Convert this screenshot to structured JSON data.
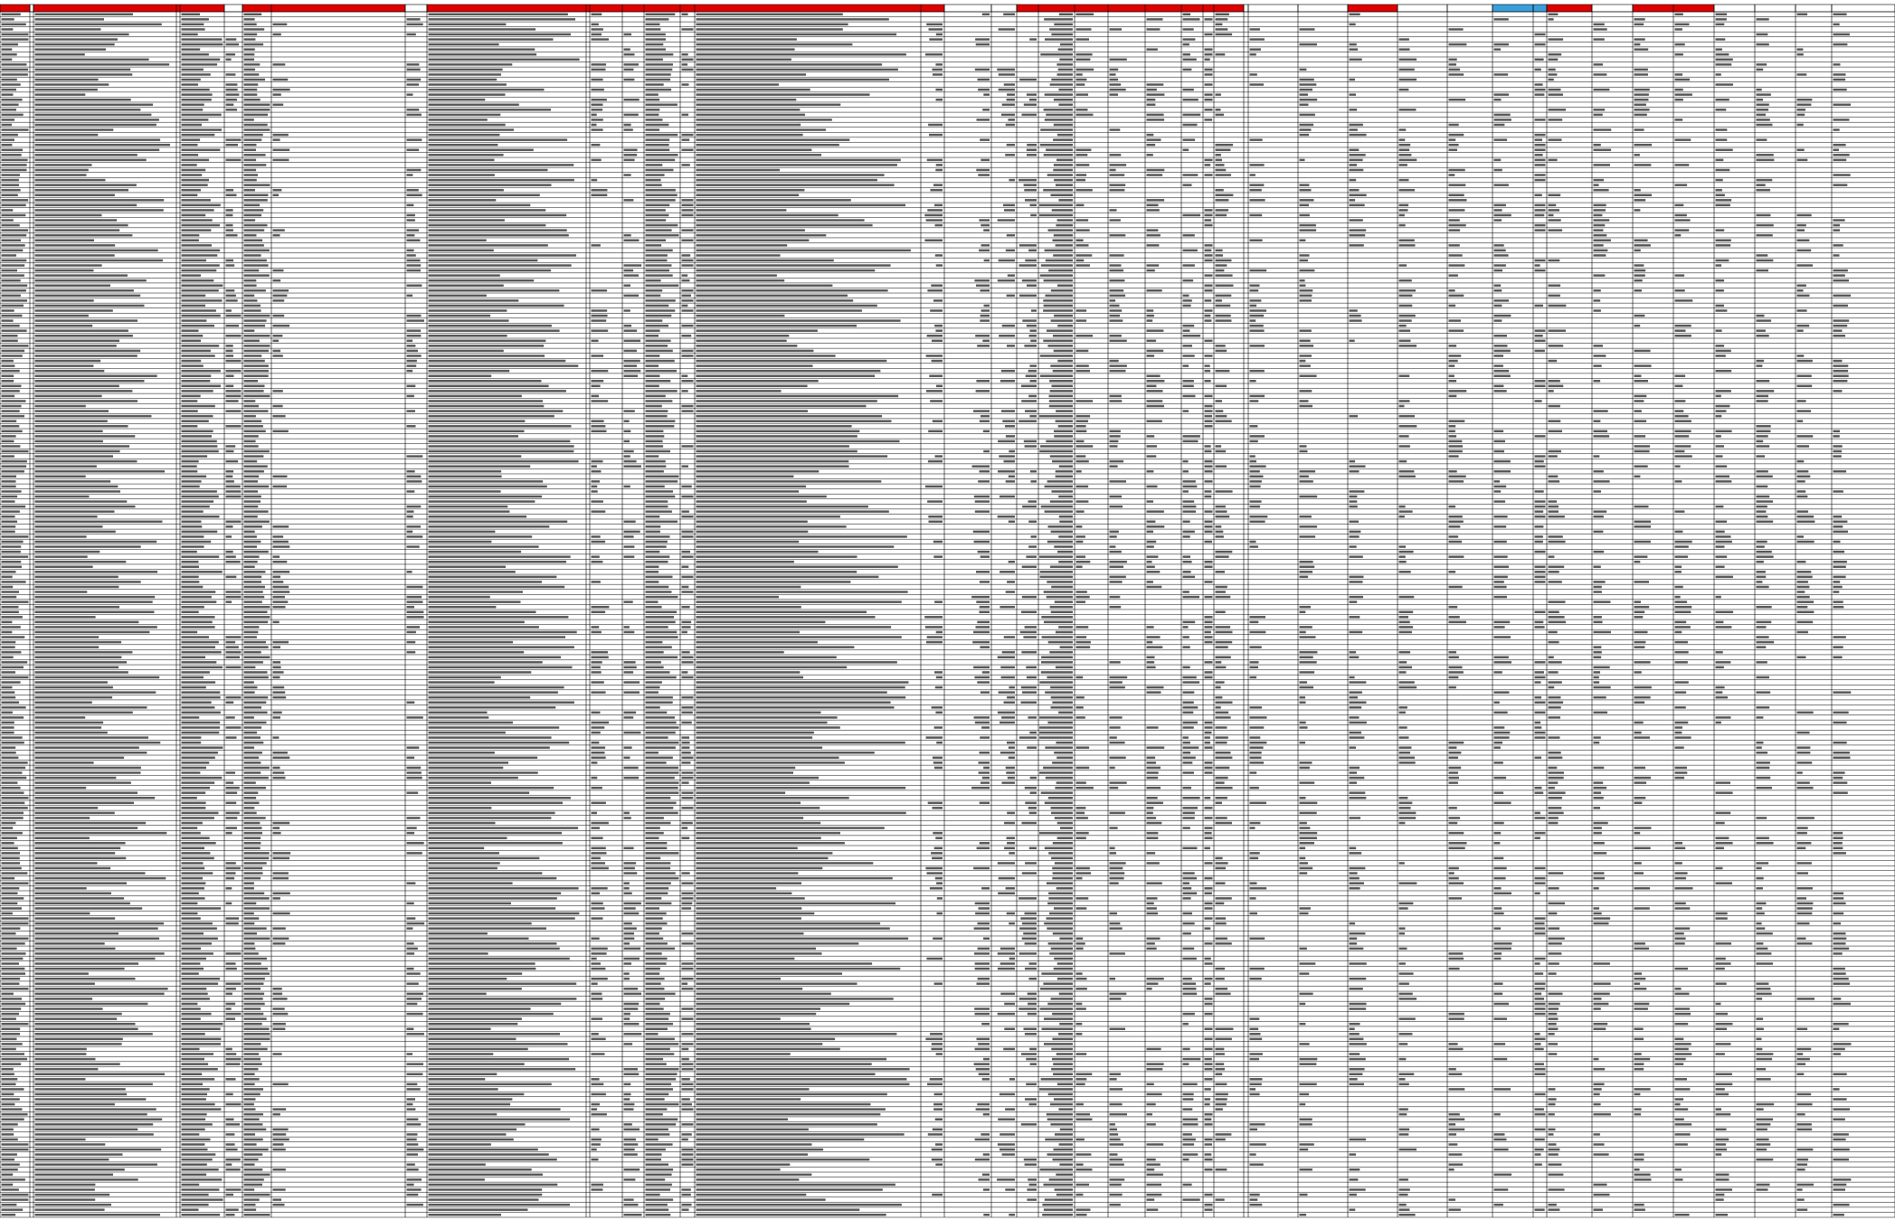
{
  "sheet": {
    "colors": {
      "header_red": "#e00000",
      "header_blue": "#3aa0dc",
      "header_plain": "#ffffff",
      "grid_line": "#000000",
      "cell_text": "#000000",
      "background": "#ffffff"
    },
    "header": [
      {
        "style": "red",
        "width": 1
      },
      {
        "style": "plain",
        "width": 1
      },
      {
        "style": "red",
        "width": 3
      },
      {
        "style": "plain",
        "width": 1
      },
      {
        "style": "red",
        "width": 2
      },
      {
        "style": "plain",
        "width": 1
      },
      {
        "style": "red",
        "width": 8
      },
      {
        "style": "plain",
        "width": 1
      },
      {
        "style": "plain",
        "width": 1
      },
      {
        "style": "red",
        "width": 8
      },
      {
        "style": "plain",
        "width": 1
      },
      {
        "style": "plain",
        "width": 1
      },
      {
        "style": "plain",
        "width": 1
      },
      {
        "style": "red",
        "width": 1
      },
      {
        "style": "plain",
        "width": 1
      },
      {
        "style": "plain",
        "width": 1
      },
      {
        "style": "blue",
        "width": 1
      },
      {
        "style": "blue",
        "width": 1
      },
      {
        "style": "red",
        "width": 1
      },
      {
        "style": "plain",
        "width": 1
      },
      {
        "style": "red",
        "width": 2
      },
      {
        "style": "plain",
        "width": 1
      },
      {
        "style": "plain",
        "width": 1
      },
      {
        "style": "plain",
        "width": 1
      },
      {
        "style": "plain",
        "width": 1
      },
      {
        "style": "plain",
        "width": 1
      },
      {
        "style": "plain",
        "width": 1
      },
      {
        "style": "plain",
        "width": 1
      },
      {
        "style": "plain",
        "width": 1
      },
      {
        "style": "plain",
        "width": 1
      },
      {
        "style": "plain",
        "width": 1
      },
      {
        "style": "plain",
        "width": 1
      },
      {
        "style": "plain",
        "width": 1
      },
      {
        "style": "red",
        "width": 1
      },
      {
        "style": "plain",
        "width": 1
      },
      {
        "style": "plain",
        "width": 1
      },
      {
        "style": "plain",
        "width": 1
      },
      {
        "style": "plain",
        "width": 1
      },
      {
        "style": "plain",
        "width": 1
      },
      {
        "style": "plain",
        "width": 1
      },
      {
        "style": "red",
        "width": 1
      },
      {
        "style": "plain",
        "width": 1
      },
      {
        "style": "plain",
        "width": 1
      }
    ],
    "row_count": 240,
    "note": ""
  }
}
